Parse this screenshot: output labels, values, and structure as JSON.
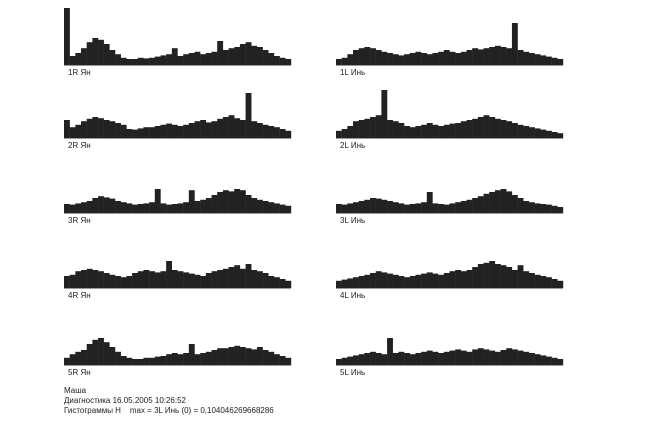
{
  "chart_data": [
    {
      "type": "bar",
      "title": "1R Ян",
      "values": [
        95,
        15,
        20,
        28,
        38,
        45,
        42,
        35,
        25,
        18,
        12,
        10,
        10,
        12,
        11,
        12,
        14,
        16,
        18,
        28,
        15,
        18,
        20,
        22,
        18,
        20,
        22,
        40,
        25,
        28,
        30,
        35,
        38,
        32,
        30,
        25,
        20,
        15,
        12,
        10
      ]
    },
    {
      "type": "bar",
      "title": "2R Ян",
      "values": [
        30,
        18,
        22,
        28,
        32,
        35,
        33,
        30,
        28,
        25,
        22,
        15,
        14,
        16,
        18,
        18,
        20,
        22,
        24,
        22,
        20,
        22,
        25,
        28,
        30,
        26,
        28,
        32,
        35,
        38,
        33,
        30,
        75,
        28,
        25,
        22,
        20,
        18,
        15,
        12
      ]
    },
    {
      "type": "bar",
      "title": "3R Ян",
      "values": [
        15,
        14,
        16,
        18,
        20,
        25,
        28,
        26,
        24,
        20,
        18,
        16,
        14,
        15,
        16,
        18,
        40,
        16,
        14,
        15,
        16,
        18,
        38,
        20,
        22,
        25,
        30,
        35,
        38,
        36,
        40,
        38,
        30,
        25,
        22,
        20,
        18,
        16,
        14,
        12
      ]
    },
    {
      "type": "bar",
      "title": "4R Ян",
      "values": [
        20,
        22,
        28,
        30,
        32,
        30,
        28,
        25,
        22,
        20,
        18,
        20,
        25,
        28,
        30,
        28,
        26,
        28,
        45,
        30,
        28,
        26,
        24,
        22,
        20,
        25,
        28,
        30,
        32,
        35,
        38,
        32,
        40,
        30,
        28,
        25,
        20,
        18,
        15,
        12
      ]
    },
    {
      "type": "bar",
      "title": "5R Ян",
      "values": [
        12,
        18,
        22,
        25,
        35,
        42,
        45,
        38,
        30,
        22,
        15,
        12,
        10,
        10,
        12,
        12,
        14,
        15,
        18,
        20,
        18,
        20,
        35,
        18,
        20,
        22,
        25,
        28,
        28,
        30,
        32,
        30,
        28,
        26,
        30,
        25,
        22,
        18,
        15,
        12
      ]
    },
    {
      "type": "bar",
      "title": "1L Инь",
      "values": [
        10,
        12,
        18,
        25,
        28,
        30,
        28,
        25,
        22,
        20,
        18,
        16,
        18,
        20,
        22,
        20,
        18,
        20,
        22,
        25,
        22,
        20,
        22,
        25,
        28,
        26,
        28,
        30,
        32,
        30,
        28,
        70,
        25,
        22,
        20,
        18,
        16,
        14,
        12,
        10
      ]
    },
    {
      "type": "bar",
      "title": "2L Инь",
      "values": [
        12,
        15,
        20,
        28,
        30,
        32,
        35,
        38,
        80,
        30,
        28,
        25,
        20,
        18,
        20,
        22,
        25,
        22,
        20,
        22,
        24,
        25,
        28,
        30,
        32,
        35,
        38,
        35,
        32,
        30,
        28,
        25,
        22,
        20,
        18,
        16,
        14,
        12,
        10,
        8
      ]
    },
    {
      "type": "bar",
      "title": "3L Инь",
      "values": [
        15,
        14,
        16,
        18,
        20,
        22,
        25,
        24,
        22,
        20,
        18,
        16,
        14,
        15,
        16,
        18,
        35,
        16,
        15,
        14,
        16,
        18,
        20,
        22,
        25,
        28,
        32,
        35,
        38,
        40,
        36,
        30,
        25,
        20,
        18,
        16,
        15,
        14,
        12,
        10
      ]
    },
    {
      "type": "bar",
      "title": "4L Инь",
      "values": [
        12,
        14,
        16,
        18,
        20,
        22,
        25,
        28,
        26,
        24,
        22,
        20,
        18,
        20,
        22,
        24,
        26,
        24,
        22,
        25,
        28,
        30,
        28,
        30,
        35,
        40,
        42,
        45,
        40,
        38,
        35,
        30,
        38,
        28,
        25,
        22,
        20,
        18,
        15,
        12
      ]
    },
    {
      "type": "bar",
      "title": "5L Инь",
      "values": [
        10,
        12,
        14,
        16,
        18,
        20,
        22,
        20,
        18,
        45,
        20,
        22,
        20,
        18,
        20,
        22,
        24,
        22,
        20,
        22,
        24,
        26,
        24,
        22,
        26,
        28,
        26,
        24,
        22,
        25,
        28,
        26,
        24,
        22,
        20,
        18,
        16,
        14,
        12,
        10
      ]
    }
  ],
  "footer": {
    "name": "Маша",
    "diagnostics": "Диагностика 16.05.2005 10:26:52",
    "summary": "Гистограммы H    max = 3L Инь (0) = 0,104046269668286"
  }
}
